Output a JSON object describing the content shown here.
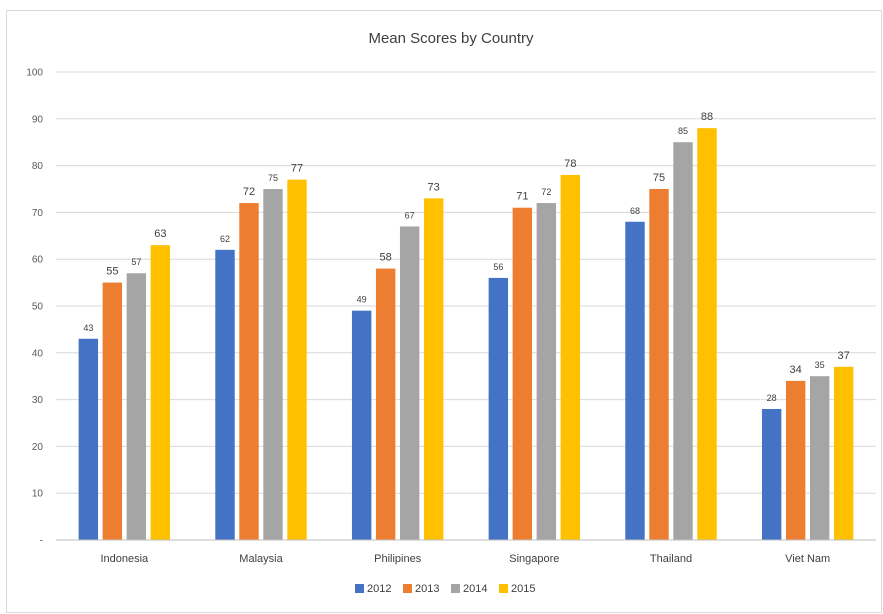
{
  "chart_data": {
    "type": "bar",
    "title": "Mean Scores by Country",
    "xlabel": "",
    "ylabel": "",
    "ylim": [
      0,
      100
    ],
    "y_ticks": [
      "-",
      "10",
      "20",
      "30",
      "40",
      "50",
      "60",
      "70",
      "80",
      "90",
      "100"
    ],
    "grid": true,
    "legend_position": "bottom",
    "categories": [
      "Indonesia",
      "Malaysia",
      "Philipines",
      "Singapore",
      "Thailand",
      "Viet Nam"
    ],
    "series": [
      {
        "name": "2012",
        "color": "#4472c4",
        "values": [
          43,
          62,
          49,
          56,
          68,
          28
        ]
      },
      {
        "name": "2013",
        "color": "#ed7d31",
        "values": [
          55,
          72,
          58,
          71,
          75,
          34
        ]
      },
      {
        "name": "2014",
        "color": "#a5a5a5",
        "values": [
          57,
          75,
          67,
          72,
          85,
          35
        ]
      },
      {
        "name": "2015",
        "color": "#ffc000",
        "values": [
          63,
          77,
          73,
          78,
          88,
          37
        ]
      }
    ]
  }
}
